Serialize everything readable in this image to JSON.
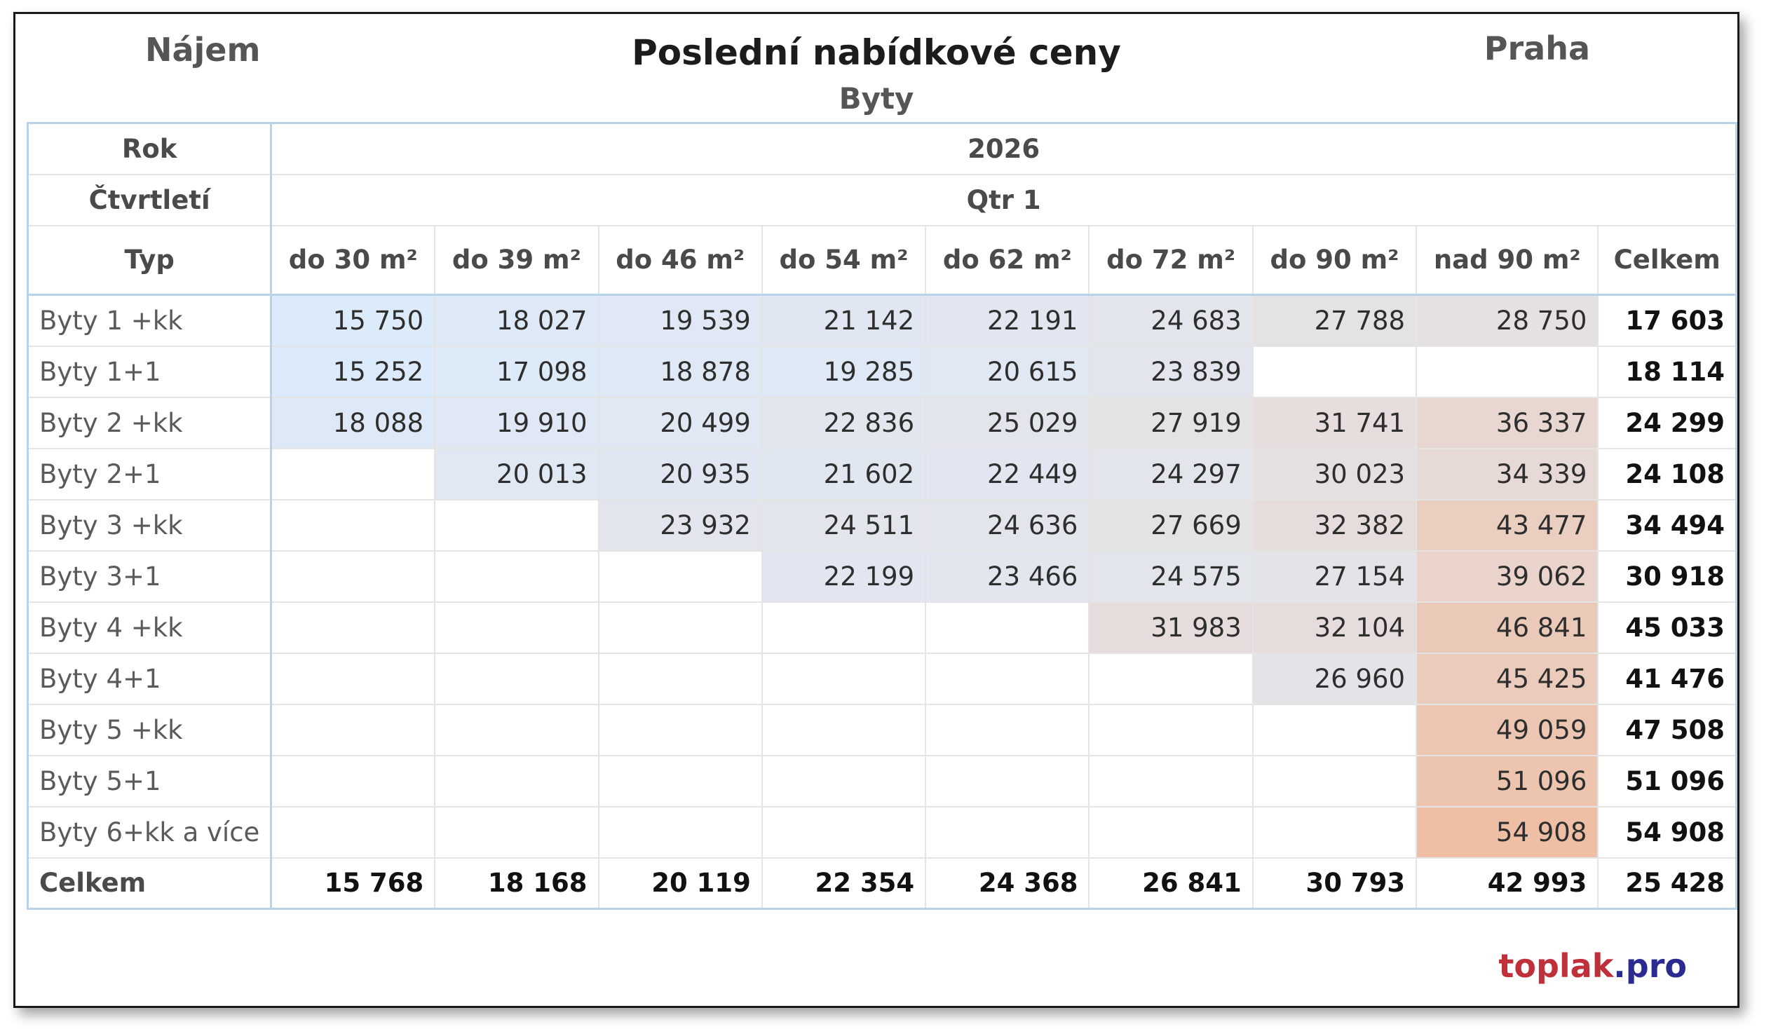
{
  "header": {
    "left": "Nájem",
    "title": "Poslední nabídkové ceny",
    "subtitle": "Byty",
    "right": "Praha"
  },
  "table": {
    "row_label_year": "Rok",
    "year": "2026",
    "row_label_quarter": "Čtvrtletí",
    "quarter": "Qtr 1",
    "row_label_type": "Typ",
    "columns": [
      "do 30 m²",
      "do 39 m²",
      "do 46 m²",
      "do 54 m²",
      "do 62 m²",
      "do 72 m²",
      "do 90 m²",
      "nad 90 m²",
      "Celkem"
    ],
    "rows": [
      {
        "label": "Byty 1 +kk",
        "values": [
          "15 750",
          "18 027",
          "19 539",
          "21 142",
          "22 191",
          "24 683",
          "27 788",
          "28 750"
        ],
        "total": "17 603"
      },
      {
        "label": "Byty 1+1",
        "values": [
          "15 252",
          "17 098",
          "18 878",
          "19 285",
          "20 615",
          "23 839",
          "",
          ""
        ],
        "total": "18 114"
      },
      {
        "label": "Byty 2 +kk",
        "values": [
          "18 088",
          "19 910",
          "20 499",
          "22 836",
          "25 029",
          "27 919",
          "31 741",
          "36 337"
        ],
        "total": "24 299"
      },
      {
        "label": "Byty 2+1",
        "values": [
          "",
          "20 013",
          "20 935",
          "21 602",
          "22 449",
          "24 297",
          "30 023",
          "34 339"
        ],
        "total": "24 108"
      },
      {
        "label": "Byty 3 +kk",
        "values": [
          "",
          "",
          "23 932",
          "24 511",
          "24 636",
          "27 669",
          "32 382",
          "43 477"
        ],
        "total": "34 494"
      },
      {
        "label": "Byty 3+1",
        "values": [
          "",
          "",
          "",
          "22 199",
          "23 466",
          "24 575",
          "27 154",
          "39 062"
        ],
        "total": "30 918"
      },
      {
        "label": "Byty 4 +kk",
        "values": [
          "",
          "",
          "",
          "",
          "",
          "31 983",
          "32 104",
          "46 841"
        ],
        "total": "45 033"
      },
      {
        "label": "Byty 4+1",
        "values": [
          "",
          "",
          "",
          "",
          "",
          "",
          "26 960",
          "45 425"
        ],
        "total": "41 476"
      },
      {
        "label": "Byty 5 +kk",
        "values": [
          "",
          "",
          "",
          "",
          "",
          "",
          "",
          "49 059"
        ],
        "total": "47 508"
      },
      {
        "label": "Byty 5+1",
        "values": [
          "",
          "",
          "",
          "",
          "",
          "",
          "",
          "51 096"
        ],
        "total": "51 096"
      },
      {
        "label": "Byty 6+kk a více",
        "values": [
          "",
          "",
          "",
          "",
          "",
          "",
          "",
          "54 908"
        ],
        "total": "54 908"
      }
    ],
    "totals": {
      "label": "Celkem",
      "values": [
        "15 768",
        "18 168",
        "20 119",
        "22 354",
        "24 368",
        "26 841",
        "30 793",
        "42 993"
      ],
      "total": "25 428"
    },
    "heatmap_colors": {
      "low": "#dcebfb",
      "mid": "#e4e4ea",
      "high": "#eebfa4"
    }
  },
  "brand": {
    "part1": "toplak",
    "part2": ".pro"
  }
}
